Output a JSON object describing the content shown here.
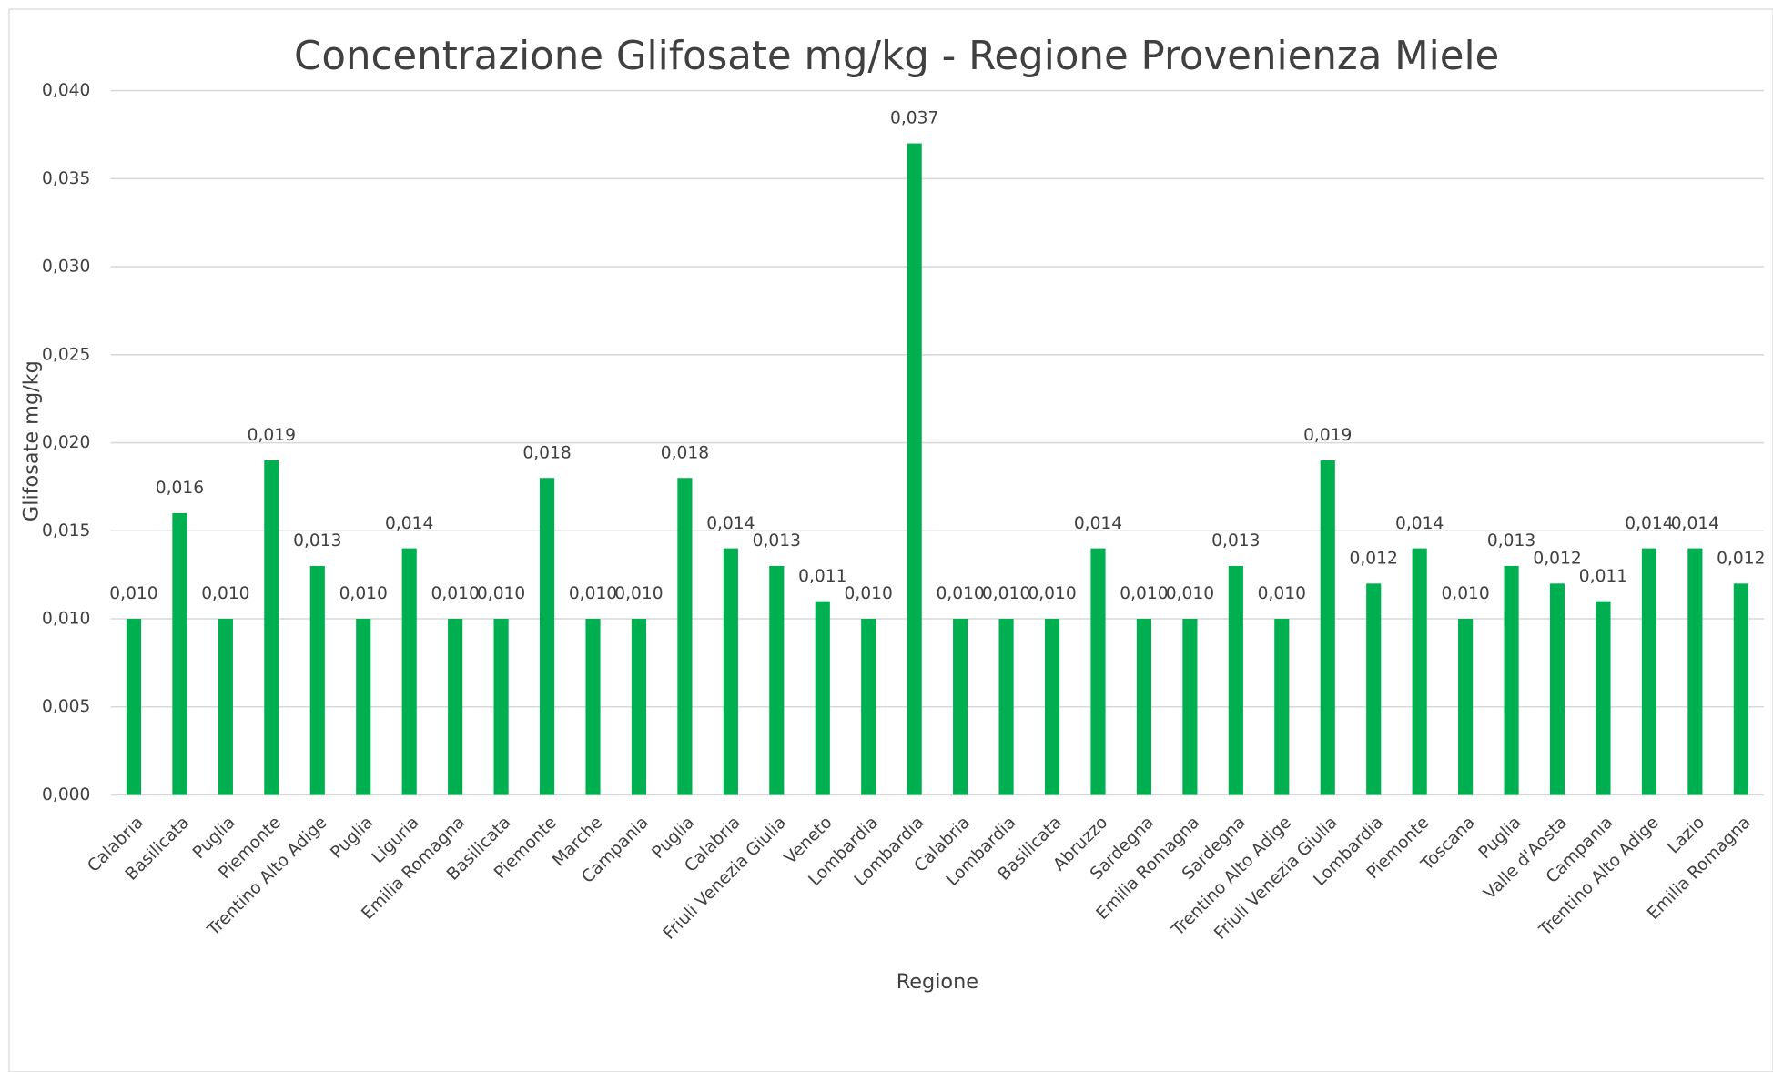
{
  "chart_data": {
    "type": "bar",
    "title": "Concentrazione Glifosate mg/kg - Regione Provenienza Miele",
    "x_label": "Regione",
    "y_label": "Glifosate mg/kg",
    "categories": [
      "Calabria",
      "Basilicata",
      "Puglia",
      "Piemonte",
      "Trentino Alto Adige",
      "Puglia",
      "Liguria",
      "Emilia Romagna",
      "Basilicata",
      "Piemonte",
      "Marche",
      "Campania",
      "Puglia",
      "Calabria",
      "Friuli Venezia Giulia",
      "Veneto",
      "Lombardia",
      "Lombardia",
      "Calabria",
      "Lombardia",
      "Basilicata",
      "Abruzzo",
      "Sardegna",
      "Emilia Romagna",
      "Sardegna",
      "Trentino Alto Adige",
      "Friuli Venezia Giulia",
      "Lombardia",
      "Piemonte",
      "Toscana",
      "Puglia",
      "Valle d'Aosta",
      "Campania",
      "Trentino Alto Adige",
      "Lazio",
      "Emilia Romagna"
    ],
    "values": [
      0.01,
      0.016,
      0.01,
      0.019,
      0.013,
      0.01,
      0.014,
      0.01,
      0.01,
      0.018,
      0.01,
      0.01,
      0.018,
      0.014,
      0.013,
      0.011,
      0.01,
      0.037,
      0.01,
      0.01,
      0.01,
      0.014,
      0.01,
      0.01,
      0.013,
      0.01,
      0.019,
      0.012,
      0.014,
      0.01,
      0.013,
      0.012,
      0.011,
      0.014,
      0.014,
      0.012
    ],
    "value_labels": [
      "0,010",
      "0,016",
      "0,010",
      "0,019",
      "0,013",
      "0,010",
      "0,014",
      "0,010",
      "0,010",
      "0,018",
      "0,010",
      "0,010",
      "0,018",
      "0,014",
      "0,013",
      "0,011",
      "0,010",
      "0,037",
      "0,010",
      "0,010",
      "0,010",
      "0,014",
      "0,010",
      "0,010",
      "0,013",
      "0,010",
      "0,019",
      "0,012",
      "0,014",
      "0,010",
      "0,013",
      "0,012",
      "0,011",
      "0,014",
      "0,014",
      "0,012"
    ],
    "color": "#00b050",
    "ylim": [
      0,
      0.04
    ],
    "yticks": [
      {
        "value": 0,
        "label": "0,000"
      },
      {
        "value": 0.005,
        "label": "0,005"
      },
      {
        "value": 0.01,
        "label": "0,010"
      },
      {
        "value": 0.015,
        "label": "0,015"
      },
      {
        "value": 0.02,
        "label": "0,020"
      },
      {
        "value": 0.025,
        "label": "0,025"
      },
      {
        "value": 0.03,
        "label": "0,030"
      },
      {
        "value": 0.035,
        "label": "0,035"
      },
      {
        "value": 0.04,
        "label": "0,040"
      }
    ],
    "grid": true
  }
}
